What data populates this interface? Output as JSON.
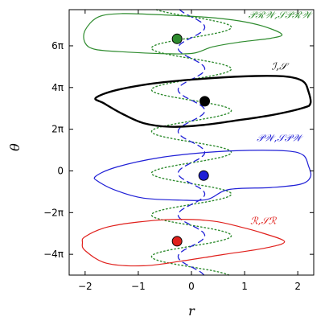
{
  "chart_data": {
    "type": "line",
    "xlabel": "r",
    "ylabel": "θ",
    "xlim": [
      -2.3,
      2.3
    ],
    "ylim": [
      -15.7,
      24.3
    ],
    "x_ticks": [
      -2,
      -1,
      0,
      1,
      2
    ],
    "x_tick_labels": [
      "−2",
      "−1",
      "0",
      "1",
      "2"
    ],
    "y_ticks": [
      -12.566,
      -6.283,
      0,
      6.283,
      12.566,
      18.85
    ],
    "y_tick_labels": [
      "−4π",
      "−2π",
      "0",
      "2π",
      "4π",
      "6π"
    ],
    "grid": false,
    "regions": [
      {
        "name": "𝒫ℛ𝒲,𝒮𝒫ℛ𝒲",
        "color": "#2e8b2e",
        "line_width": 1.2,
        "center_offset": 19.8,
        "marker": {
          "r": -0.27,
          "theta": 19.9
        },
        "boundary": [
          [
            -1.3,
            23.7
          ],
          [
            -0.5,
            23.5
          ],
          [
            0.3,
            23.15
          ],
          [
            0.9,
            22.6
          ],
          [
            1.35,
            21.8
          ],
          [
            1.7,
            20.6
          ],
          [
            1.5,
            20.0
          ],
          [
            0.9,
            19.4
          ],
          [
            0.4,
            18.7
          ],
          [
            0.05,
            17.75
          ],
          [
            -0.4,
            17.65
          ],
          [
            -1.2,
            17.9
          ],
          [
            -1.8,
            18.3
          ],
          [
            -2.0,
            19.3
          ],
          [
            -2.0,
            21.2
          ],
          [
            -1.75,
            23.2
          ],
          [
            -1.3,
            23.7
          ]
        ]
      },
      {
        "name": "ℐ,𝒮",
        "color": "#000000",
        "line_width": 2.4,
        "center_offset": 10.5,
        "marker": {
          "r": 0.25,
          "theta": 10.5
        },
        "boundary": [
          [
            -1.8,
            11.0
          ],
          [
            -1.4,
            12.2
          ],
          [
            -0.6,
            13.3
          ],
          [
            0.4,
            14.0
          ],
          [
            1.2,
            14.3
          ],
          [
            1.8,
            14.2
          ],
          [
            2.1,
            13.5
          ],
          [
            2.2,
            12.0
          ],
          [
            2.24,
            10.2
          ],
          [
            2.1,
            9.5
          ],
          [
            1.5,
            8.4
          ],
          [
            0.8,
            7.55
          ],
          [
            0.2,
            6.9
          ],
          [
            -0.4,
            6.65
          ],
          [
            -0.9,
            7.2
          ],
          [
            -1.3,
            8.6
          ],
          [
            -1.65,
            10.2
          ],
          [
            -1.8,
            11.0
          ]
        ]
      },
      {
        "name": "𝒫𝒲,𝒮𝒫𝒲",
        "color": "#1f1fd6",
        "line_width": 1.2,
        "center_offset": -0.6,
        "marker": {
          "r": 0.23,
          "theta": -0.7
        },
        "boundary": [
          [
            -1.8,
            -0.8
          ],
          [
            -1.4,
            0.6
          ],
          [
            -0.6,
            2.0
          ],
          [
            0.3,
            2.8
          ],
          [
            1.1,
            3.1
          ],
          [
            1.8,
            3.0
          ],
          [
            2.1,
            2.4
          ],
          [
            2.2,
            0.8
          ],
          [
            2.24,
            -0.9
          ],
          [
            2.05,
            -2.0
          ],
          [
            1.5,
            -2.5
          ],
          [
            0.7,
            -2.8
          ],
          [
            0.3,
            -4.3
          ],
          [
            -0.2,
            -4.4
          ],
          [
            -0.9,
            -4.1
          ],
          [
            -1.4,
            -3.0
          ],
          [
            -1.75,
            -1.6
          ],
          [
            -1.8,
            -0.8
          ]
        ]
      },
      {
        "name": "ℛ,𝒮ℛ",
        "color": "#e0201c",
        "line_width": 1.2,
        "center_offset": -10.4,
        "marker": {
          "r": -0.27,
          "theta": -10.6
        },
        "boundary": [
          [
            -2.0,
            -9.9
          ],
          [
            -1.6,
            -8.5
          ],
          [
            -1.0,
            -7.7
          ],
          [
            -0.3,
            -7.3
          ],
          [
            0.4,
            -7.55
          ],
          [
            0.9,
            -8.4
          ],
          [
            1.35,
            -9.4
          ],
          [
            1.75,
            -10.65
          ],
          [
            1.4,
            -11.6
          ],
          [
            0.6,
            -12.6
          ],
          [
            -0.2,
            -13.6
          ],
          [
            -0.9,
            -14.3
          ],
          [
            -1.6,
            -13.9
          ],
          [
            -2.0,
            -12.0
          ],
          [
            -2.05,
            -10.8
          ],
          [
            -2.0,
            -9.9
          ]
        ]
      }
    ],
    "curves": [
      {
        "name": "",
        "style": "dotted",
        "color": "#2e8b2e",
        "description_key": "oscillating curve",
        "amplitude": 0.75,
        "center_r": 0.0,
        "period": 6.283,
        "range": [
          -15.7,
          24.3
        ]
      },
      {
        "name": "",
        "style": "dashed",
        "color": "#1f1fd6",
        "amplitude": 0.25,
        "center_r": 0.0,
        "period": 6.283,
        "range": [
          -15.7,
          24.3
        ]
      }
    ]
  }
}
